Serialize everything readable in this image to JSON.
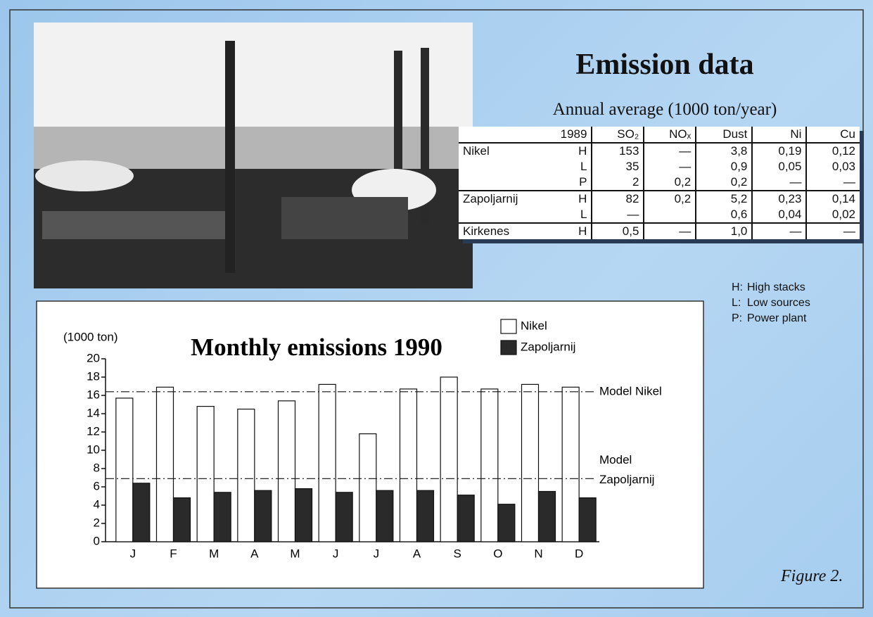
{
  "title": "Emission data",
  "subtitle": "Annual average (1000 ton/year)",
  "table": {
    "header": [
      "1989",
      "SO₂",
      "NOₓ",
      "Dust",
      "Ni",
      "Cu"
    ],
    "rows": [
      {
        "site": "Nikel",
        "source": "H",
        "cells": [
          "153",
          "—",
          "3,8",
          "0,19",
          "0,12"
        ]
      },
      {
        "source": "L",
        "cells": [
          "35",
          "—",
          "0,9",
          "0,05",
          "0,03"
        ]
      },
      {
        "source": "P",
        "cells": [
          "2",
          "0,2",
          "0,2",
          "—",
          "—"
        ]
      },
      {
        "site": "Zapoljarnij",
        "source": "H",
        "cells": [
          "82",
          "0,2",
          "5,2",
          "0,23",
          "0,14"
        ]
      },
      {
        "source": "L",
        "cells": [
          "—",
          null,
          "0,6",
          "0,04",
          "0,02"
        ]
      },
      {
        "site": "Kirkenes",
        "source": "H",
        "cells": [
          "0,5",
          "—",
          "1,0",
          "—",
          "—"
        ]
      }
    ]
  },
  "notes": [
    {
      "key": "H:",
      "text": "High stacks"
    },
    {
      "key": "L:",
      "text": "Low sources"
    },
    {
      "key": "P:",
      "text": "Power plant"
    }
  ],
  "caption": "Figure 2.",
  "chart_data": {
    "type": "bar",
    "title": "Monthly emissions 1990",
    "y_label": "(1000 ton)",
    "categories": [
      "J",
      "F",
      "M",
      "A",
      "M",
      "J",
      "J",
      "A",
      "S",
      "O",
      "N",
      "D"
    ],
    "series": [
      {
        "name": "Nikel",
        "color": "#ffffff",
        "values": [
          15.7,
          16.9,
          14.8,
          14.5,
          15.4,
          17.2,
          11.8,
          16.7,
          18.0,
          16.7,
          17.2,
          16.9
        ]
      },
      {
        "name": "Zapoljarnij",
        "color": "#2a2a2a",
        "values": [
          6.4,
          4.8,
          5.4,
          5.6,
          5.8,
          5.4,
          5.6,
          5.6,
          5.1,
          4.1,
          5.5,
          4.8
        ]
      }
    ],
    "reference_lines": [
      {
        "label_lines": [
          "Model Nikel"
        ],
        "value": 16.4
      },
      {
        "label_lines": [
          "Model",
          "Zapoljarnij"
        ],
        "value": 6.9
      }
    ],
    "ylim": [
      0,
      20
    ],
    "yticks": [
      0,
      2,
      4,
      6,
      8,
      10,
      12,
      14,
      16,
      18,
      20
    ]
  }
}
